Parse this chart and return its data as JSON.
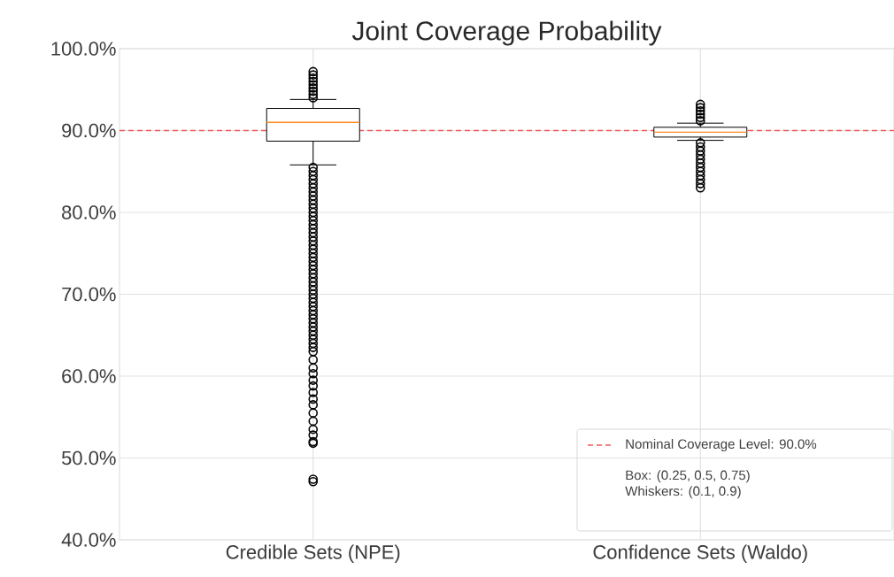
{
  "chart_data": {
    "type": "box",
    "title": "Joint Coverage Probability",
    "categories": [
      "Credible Sets (NPE)",
      "Confidence Sets (Waldo)"
    ],
    "boxes": [
      {
        "low": 85.8,
        "q1": 88.7,
        "median": 91.0,
        "q3": 92.7,
        "high": 93.8,
        "outliers": [
          94.0,
          94.4,
          94.8,
          95.2,
          95.6,
          96.0,
          96.4,
          96.8,
          97.2,
          85.5,
          85.0,
          84.5,
          84.0,
          83.5,
          83.0,
          82.5,
          82.0,
          81.5,
          81.0,
          80.5,
          80.0,
          79.5,
          79.0,
          78.5,
          78.0,
          77.5,
          77.0,
          76.5,
          76.0,
          75.5,
          75.0,
          74.5,
          74.0,
          73.5,
          73.0,
          72.5,
          72.0,
          71.5,
          71.0,
          70.5,
          70.0,
          69.5,
          69.0,
          68.5,
          68.0,
          67.5,
          67.0,
          66.5,
          66.0,
          65.5,
          65.0,
          64.5,
          64.0,
          63.5,
          63.0,
          62.0,
          61.0,
          60.3,
          59.5,
          58.8,
          58.0,
          57.2,
          56.5,
          55.5,
          54.5,
          53.5,
          52.8,
          52.0,
          51.8,
          47.4,
          47.1
        ]
      },
      {
        "low": 88.8,
        "q1": 89.2,
        "median": 89.8,
        "q3": 90.4,
        "high": 90.9,
        "outliers": [
          91.2,
          91.6,
          92.0,
          92.4,
          92.8,
          93.2,
          88.5,
          88.0,
          87.5,
          87.0,
          86.5,
          86.0,
          85.5,
          85.0,
          84.5,
          84.0,
          83.5,
          83.0
        ]
      }
    ],
    "ylim": [
      40,
      100
    ],
    "yticks": [
      {
        "value": 40,
        "label": "40.0%"
      },
      {
        "value": 50,
        "label": "50.0%"
      },
      {
        "value": 60,
        "label": "60.0%"
      },
      {
        "value": 70,
        "label": "70.0%"
      },
      {
        "value": 80,
        "label": "80.0%"
      },
      {
        "value": 90,
        "label": "90.0%"
      },
      {
        "value": 100,
        "label": "100.0%"
      }
    ],
    "ref_lines": [
      {
        "axis": "y",
        "value": 90,
        "label": "Nominal Coverage Level: 90.0%",
        "color": "#f05a5a",
        "line_style": "dashed"
      }
    ],
    "annotations": [
      "Box: (0.25, 0.5, 0.75)",
      "Whiskers: (0.1, 0.9)"
    ],
    "marker": "circle",
    "grid": true,
    "legend": "bottom right"
  }
}
